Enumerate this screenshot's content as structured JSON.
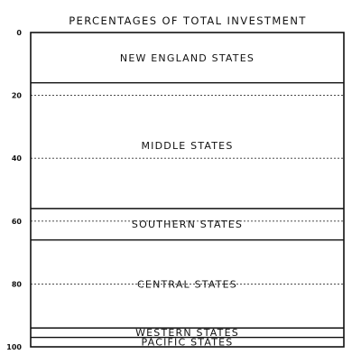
{
  "chart_data": {
    "type": "stacked-bar",
    "title": "PERCENTAGES OF TOTAL INVESTMENT",
    "ylim": [
      0,
      100
    ],
    "yticks": [
      "0",
      "20",
      "40",
      "60",
      "80",
      "100"
    ],
    "grid": true,
    "segments": [
      {
        "name": "NEW ENGLAND STATES",
        "value": 16
      },
      {
        "name": "MIDDLE STATES",
        "value": 40
      },
      {
        "name": "SOUTHERN STATES",
        "value": 10
      },
      {
        "name": "CENTRAL STATES",
        "value": 28
      },
      {
        "name": "WESTERN STATES",
        "value": 3
      },
      {
        "name": "PACIFIC STATES",
        "value": 3
      }
    ]
  }
}
